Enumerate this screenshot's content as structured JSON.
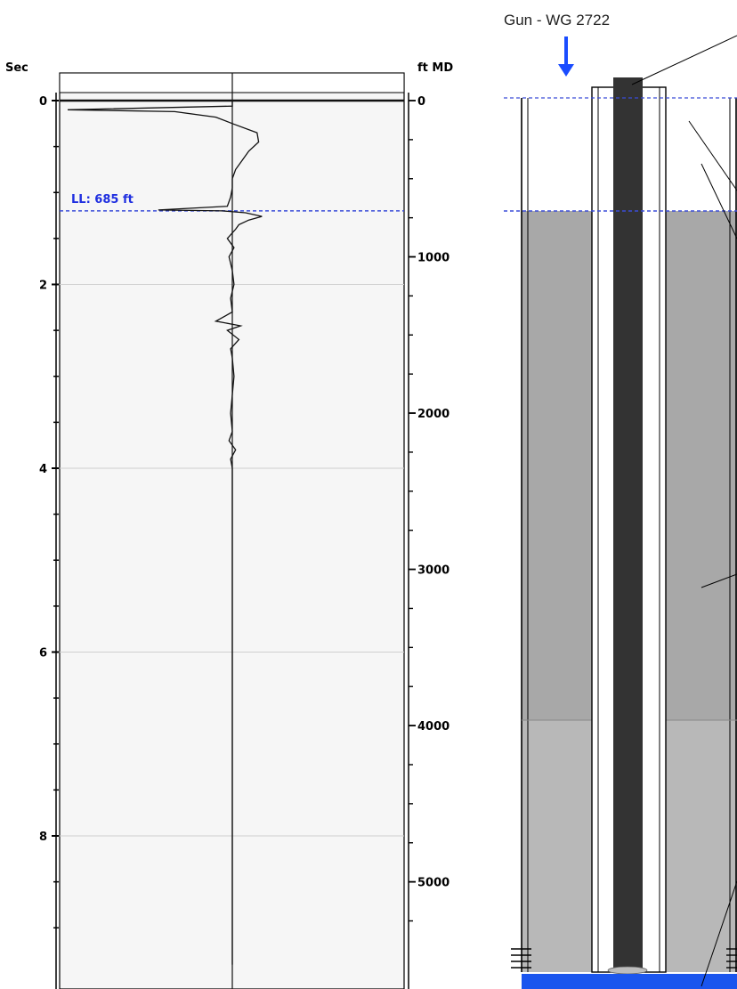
{
  "chart_data": {
    "type": "line",
    "title": "",
    "left_axis": {
      "label": "Sec",
      "range": [
        0,
        9.4
      ],
      "major_ticks": [
        0,
        2,
        4,
        6,
        8
      ],
      "tick_labels": [
        "0",
        "2",
        "4",
        "6",
        "8"
      ]
    },
    "right_axis": {
      "label": "ft MD",
      "range": [
        0,
        5330
      ],
      "major_ticks": [
        0,
        1000,
        2000,
        3000,
        4000,
        5000
      ],
      "tick_labels": [
        "0",
        "1000",
        "2000",
        "3000",
        "4000",
        "5000"
      ]
    },
    "grid": true,
    "liquid_level": {
      "label": "LL: 685 ft",
      "depth_ft": 685,
      "time_sec": 1.2
    },
    "series": [
      {
        "comment_free": true,
        "x_sec": [
          0.0,
          0.06,
          0.1,
          0.12,
          0.18,
          0.25,
          0.35,
          0.45,
          0.55,
          0.65,
          0.75,
          0.85,
          0.95,
          1.05,
          1.15,
          1.19,
          1.2,
          1.22,
          1.26,
          1.3,
          1.35,
          1.4,
          1.5,
          1.6,
          1.7,
          1.85,
          2.0,
          2.15,
          2.3,
          2.4,
          2.45,
          2.5,
          2.6,
          2.7,
          2.8,
          3.0,
          3.2,
          3.4,
          3.6,
          3.7,
          3.8,
          3.9,
          4.0,
          4.2,
          4.5,
          4.8,
          5.1,
          5.4,
          5.7,
          6.0,
          6.5,
          7.0,
          7.5,
          8.0,
          8.5,
          9.0,
          9.4
        ],
        "y_amp": [
          0.0,
          0.0,
          -1.0,
          -0.35,
          -0.1,
          0.0,
          0.15,
          0.16,
          0.1,
          0.06,
          0.02,
          0.0,
          0.0,
          -0.01,
          -0.03,
          -0.45,
          -0.06,
          0.08,
          0.18,
          0.1,
          0.04,
          0.02,
          -0.03,
          0.01,
          -0.02,
          0.0,
          0.01,
          -0.01,
          0.0,
          -0.1,
          0.05,
          -0.03,
          0.04,
          -0.01,
          0.0,
          0.01,
          0.0,
          -0.01,
          0.0,
          -0.02,
          0.02,
          -0.01,
          0.0,
          0.0,
          0.0,
          0.0,
          0.0,
          0.0,
          0.0,
          0.0,
          0.0,
          0.0,
          0.0,
          0.0,
          0.0,
          0.0,
          0.0
        ]
      }
    ]
  },
  "wellbore": {
    "gun_label": "Gun - WG 2722",
    "arrow_color": "#1a4cff",
    "fluid_color": "#a8a8a8",
    "lower_fluid_color": "#b8b8b8",
    "tubing_color": "#333333",
    "bottom_color": "#1a55ee",
    "ll_line_color": "#3a4cd8"
  },
  "colors": {
    "ll_text": "#1f2fe0",
    "trace": "#111111",
    "gridline": "#cfcfcf",
    "track_bg": "#f6f6f6"
  }
}
